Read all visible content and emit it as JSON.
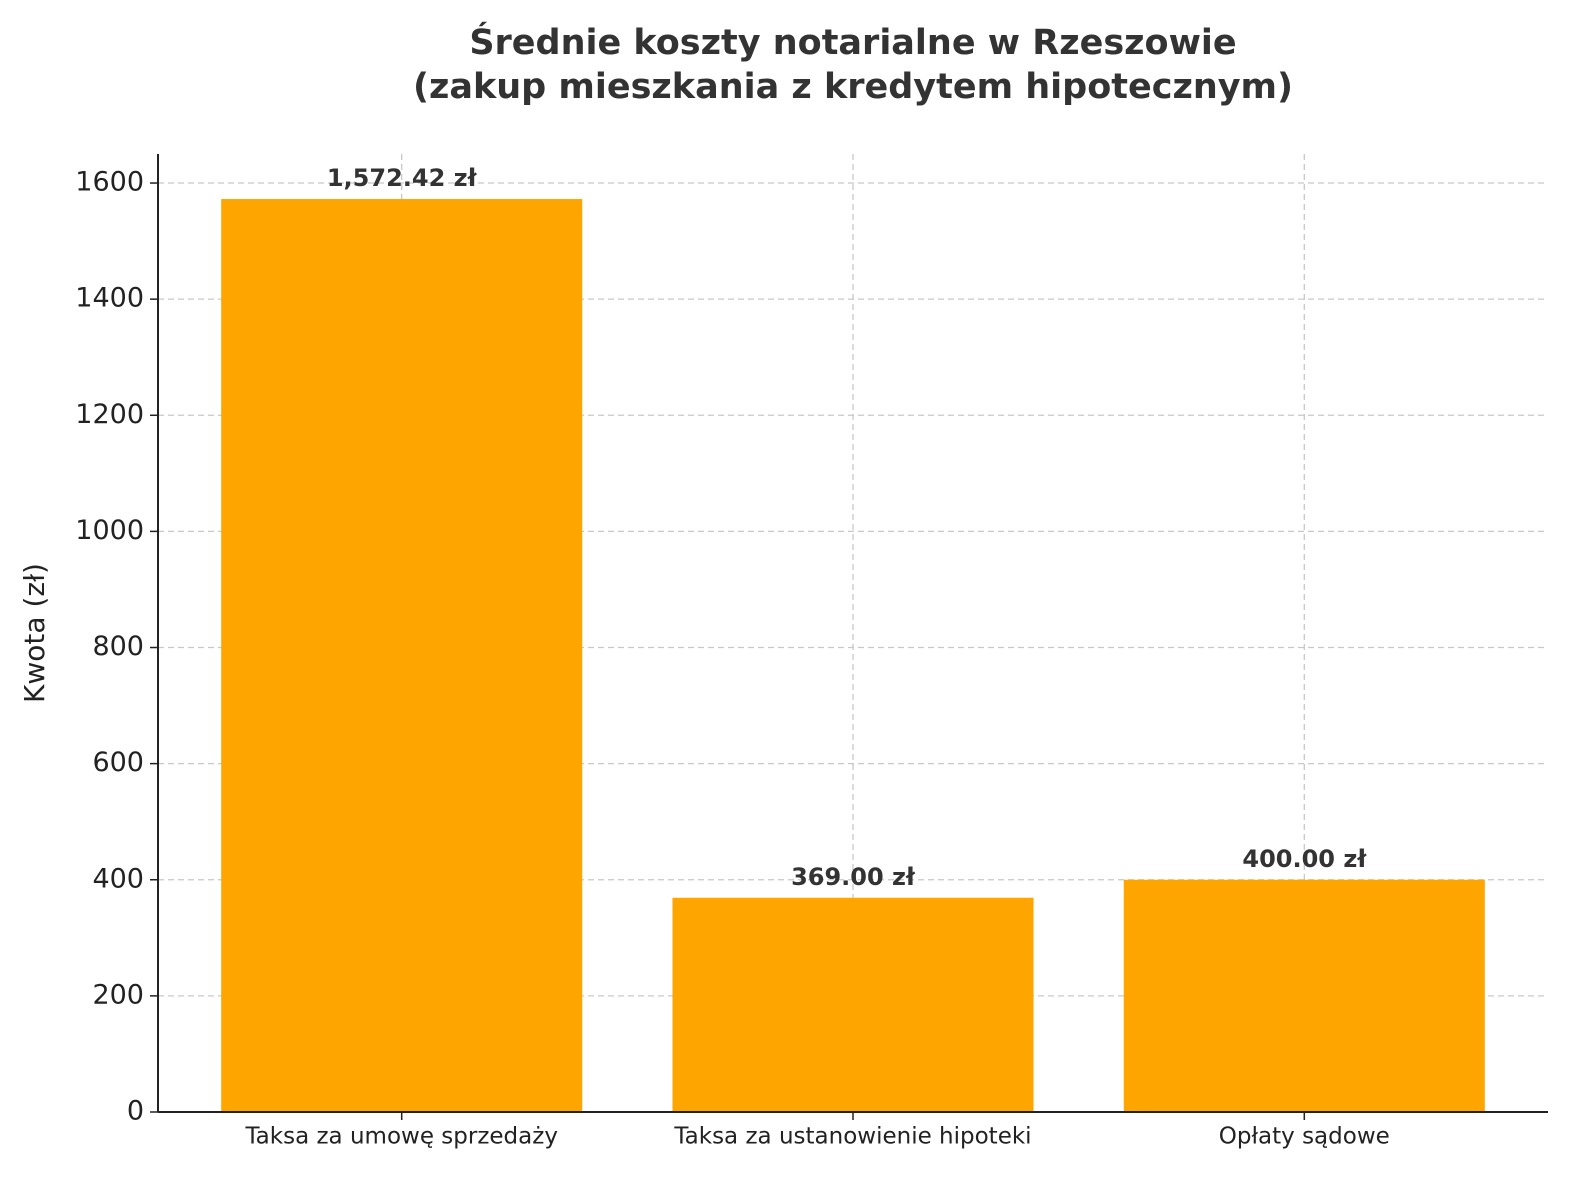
{
  "chart_data": {
    "type": "bar",
    "title": [
      "Średnie koszty notarialne w Rzeszowie",
      "(zakup mieszkania z kredytem hipotecznym)"
    ],
    "ylabel": "Kwota (zł)",
    "categories": [
      "Taksa za umowę sprzedaży",
      "Taksa za ustanowienie hipoteki",
      "Opłaty sądowe"
    ],
    "values": [
      1572.42,
      369,
      400
    ],
    "value_labels": [
      "1,572.42 zł",
      "369.00 zł",
      "400.00 zł"
    ],
    "color": "#ffa500",
    "ylim": [
      0,
      1650
    ],
    "yticks": [
      0,
      200,
      400,
      600,
      800,
      1000,
      1200,
      1400,
      1600
    ],
    "grid": true
  }
}
